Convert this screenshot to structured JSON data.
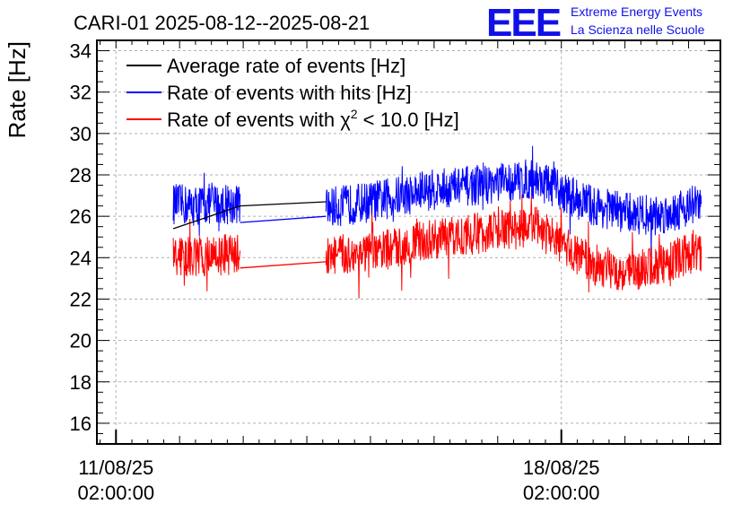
{
  "chart_data": {
    "type": "line",
    "title": "CARI-01 2025-08-12--2025-08-21",
    "xlabel": "",
    "ylabel": "Rate [Hz]",
    "ylim": [
      15,
      34.5
    ],
    "xlim_days": [
      -0.3,
      9.5
    ],
    "y_ticks": [
      16,
      18,
      20,
      22,
      24,
      26,
      28,
      30,
      32,
      34
    ],
    "x_ticks": [
      {
        "day": 0,
        "date": "11/08/25",
        "time": "02:00:00"
      },
      {
        "day": 7,
        "date": "18/08/25",
        "time": "02:00:00"
      }
    ],
    "grid": true,
    "legend_position": "top-left",
    "series": [
      {
        "name": "Average rate of events [Hz]",
        "color": "#000000",
        "segments": [
          {
            "x": [
              0.9,
              1.95,
              3.3
            ],
            "y": [
              25.4,
              26.5,
              26.7
            ]
          }
        ]
      },
      {
        "name": "Rate of events with hits [Hz]",
        "color": "#0000ff",
        "noise": 1.0,
        "segments": [
          {
            "x": [
              0.9,
              1.2,
              1.5,
              1.95
            ],
            "y": [
              26.6,
              26.5,
              26.6,
              26.6
            ]
          },
          {
            "x": [
              1.95,
              3.3
            ],
            "y": [
              25.7,
              26.0
            ]
          },
          {
            "x": [
              3.3,
              4.0,
              5.0,
              6.0,
              6.6,
              7.0,
              7.5,
              8.0,
              8.5,
              9.0,
              9.2
            ],
            "y": [
              26.4,
              26.7,
              27.3,
              27.6,
              27.8,
              27.2,
              26.5,
              26.2,
              26.0,
              26.5,
              26.6
            ]
          }
        ]
      },
      {
        "name": "Rate of events with χ² < 10.0 [Hz]",
        "color": "#ff0000",
        "noise": 1.0,
        "segments": [
          {
            "x": [
              0.9,
              1.2,
              1.5,
              1.95
            ],
            "y": [
              24.1,
              24.0,
              24.1,
              24.2
            ]
          },
          {
            "x": [
              1.95,
              3.3
            ],
            "y": [
              23.5,
              23.8
            ]
          },
          {
            "x": [
              3.3,
              4.0,
              5.0,
              6.0,
              6.6,
              7.0,
              7.5,
              8.0,
              8.5,
              9.0,
              9.2
            ],
            "y": [
              24.1,
              24.2,
              24.9,
              25.3,
              25.5,
              24.6,
              23.7,
              23.3,
              23.6,
              24.2,
              24.3
            ]
          }
        ]
      }
    ],
    "legend": [
      {
        "label_main": "Average rate of events [Hz]",
        "label_sup": "",
        "label_tail": "",
        "color": "#000000"
      },
      {
        "label_main": "Rate of events with hits [Hz]",
        "label_sup": "",
        "label_tail": "",
        "color": "#0000ff"
      },
      {
        "label_main": "Rate of events with χ",
        "label_sup": "2",
        "label_tail": " < 10.0 [Hz]",
        "color": "#ff0000"
      }
    ]
  },
  "logo": {
    "mark": "EEE",
    "line1": "Extreme Energy Events",
    "line2": "La Scienza nelle Scuole"
  }
}
